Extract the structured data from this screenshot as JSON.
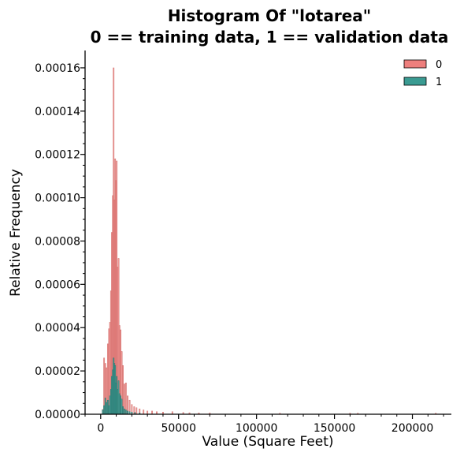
{
  "chart_data": {
    "type": "histogram",
    "title_line1": "Histogram Of \"lotarea\"",
    "title_line2": "0 == training data, 1 == validation data",
    "xlabel": "Value (Square Feet)",
    "ylabel": "Relative Frequency",
    "xlim": [
      -10000,
      225000
    ],
    "ylim": [
      0,
      0.000168
    ],
    "xticks": [
      0,
      50000,
      100000,
      150000,
      200000
    ],
    "xtick_labels": [
      "0",
      "50000",
      "100000",
      "150000",
      "200000"
    ],
    "yticks": [
      0,
      2e-05,
      4e-05,
      6e-05,
      8e-05,
      0.0001,
      0.00012,
      0.00014,
      0.00016
    ],
    "ytick_labels": [
      "0.00000",
      "0.00002",
      "0.00004",
      "0.00006",
      "0.00008",
      "0.00010",
      "0.00012",
      "0.00014",
      "0.00016"
    ],
    "grid": false,
    "legend_position": "top-right",
    "series": [
      {
        "name": "0",
        "color": "#ee7f7d",
        "edge_color": "#c96562",
        "x": [
          1300,
          2200,
          3000,
          3800,
          4600,
          5400,
          6000,
          6600,
          7200,
          7800,
          8300,
          8800,
          9300,
          9800,
          10300,
          10900,
          11500,
          12100,
          12800,
          13500,
          14300,
          15200,
          16200,
          17300,
          18600,
          20000,
          21500,
          23000,
          25000,
          27500,
          30000,
          33000,
          36000,
          40000,
          46000,
          53000,
          57000,
          63000,
          70000,
          115000,
          160000,
          165000,
          215000
        ],
        "values": [
          2.2e-06,
          2.6e-05,
          2.35e-05,
          2.15e-05,
          3.25e-05,
          3.95e-05,
          4.25e-05,
          5.7e-05,
          8.4e-05,
          0.000101,
          0.00016,
          9.9e-05,
          0.000118,
          0.000108,
          0.000117,
          6.8e-05,
          7.2e-05,
          4.1e-05,
          3.9e-05,
          2.9e-05,
          2.25e-05,
          1.4e-05,
          1.45e-05,
          8.5e-06,
          6.5e-06,
          4.5e-06,
          3.5e-06,
          3e-06,
          2.5e-06,
          2e-06,
          1.5e-06,
          1.5e-06,
          1.2e-06,
          1e-06,
          1.2e-06,
          8e-07,
          7e-07,
          6e-07,
          6e-07,
          5e-07,
          5e-07,
          5e-07,
          5e-07
        ]
      },
      {
        "name": "1",
        "color": "#3a9b92",
        "edge_color": "#1f6f68",
        "x": [
          1300,
          2200,
          3000,
          3800,
          4600,
          5400,
          6000,
          6600,
          7200,
          7800,
          8300,
          8800,
          9300,
          9800,
          10300,
          10900,
          11500,
          12100,
          12800,
          13500,
          14300,
          15200,
          16200,
          17300,
          18600,
          20000,
          22000,
          25000
        ],
        "values": [
          2e-06,
          4e-06,
          7.5e-06,
          5.5e-06,
          6.5e-06,
          4e-06,
          8.5e-06,
          1.15e-05,
          1.75e-05,
          2.05e-05,
          2.6e-05,
          2.35e-05,
          2.25e-05,
          1.45e-05,
          1.75e-05,
          1.15e-05,
          1.55e-05,
          9.5e-06,
          8.5e-06,
          7e-06,
          3.5e-06,
          2.5e-06,
          2e-06,
          1.5e-06,
          1.2e-06,
          1e-06,
          8e-07,
          6e-07
        ]
      }
    ]
  }
}
